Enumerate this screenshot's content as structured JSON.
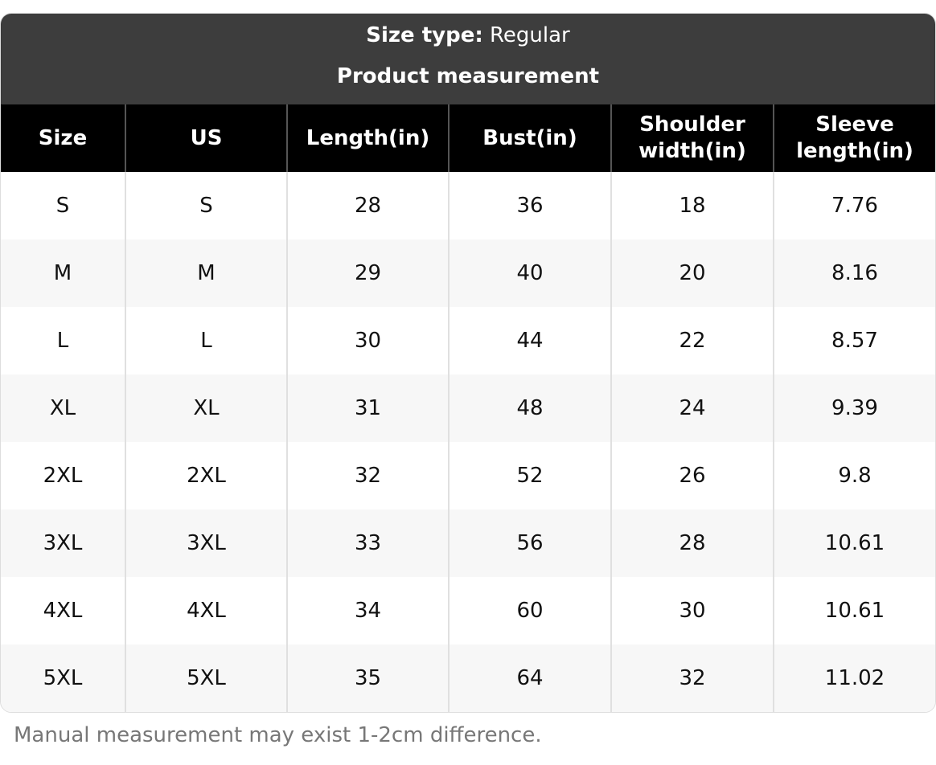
{
  "header": {
    "size_type_label": "Size type:",
    "size_type_value": "Regular",
    "subtitle": "Product measurement"
  },
  "table": {
    "columns": [
      "Size",
      "US",
      "Length(in)",
      "Bust(in)",
      "Shoulder width(in)",
      "Sleeve length(in)"
    ],
    "rows": [
      [
        "S",
        "S",
        "28",
        "36",
        "18",
        "7.76"
      ],
      [
        "M",
        "M",
        "29",
        "40",
        "20",
        "8.16"
      ],
      [
        "L",
        "L",
        "30",
        "44",
        "22",
        "8.57"
      ],
      [
        "XL",
        "XL",
        "31",
        "48",
        "24",
        "9.39"
      ],
      [
        "2XL",
        "2XL",
        "32",
        "52",
        "26",
        "9.8"
      ],
      [
        "3XL",
        "3XL",
        "33",
        "56",
        "28",
        "10.61"
      ],
      [
        "4XL",
        "4XL",
        "34",
        "60",
        "30",
        "10.61"
      ],
      [
        "5XL",
        "5XL",
        "35",
        "64",
        "32",
        "11.02"
      ]
    ]
  },
  "footer": {
    "note": "Manual measurement may exist 1-2cm difference."
  }
}
